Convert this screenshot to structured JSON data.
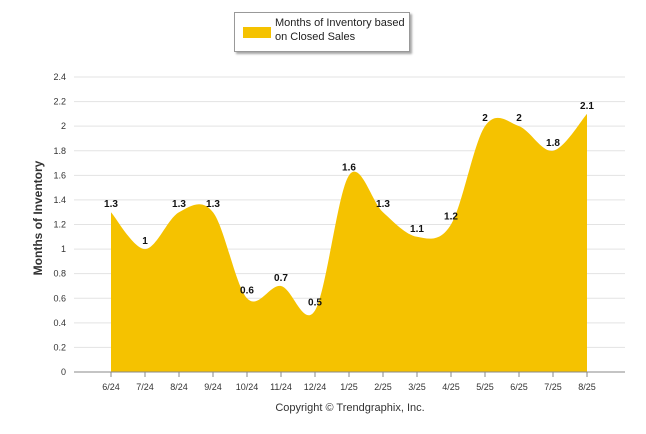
{
  "chart_data": {
    "type": "area",
    "categories": [
      "6/24",
      "7/24",
      "8/24",
      "9/24",
      "10/24",
      "11/24",
      "12/24",
      "1/25",
      "2/25",
      "3/25",
      "4/25",
      "5/25",
      "6/25",
      "7/25",
      "8/25"
    ],
    "series": [
      {
        "name": "Months of Inventory based on Closed Sales",
        "values": [
          1.3,
          1,
          1.3,
          1.3,
          0.6,
          0.7,
          0.5,
          1.6,
          1.3,
          1.1,
          1.2,
          2,
          2,
          1.8,
          2.1
        ]
      }
    ],
    "data_labels": [
      "1.3",
      "1",
      "1.3",
      "1.3",
      "0.6",
      "0.7",
      "0.5",
      "1.6",
      "1.3",
      "1.1",
      "1.2",
      "2",
      "2",
      "1.8",
      "2.1"
    ],
    "yticks": [
      "0",
      "0.2",
      "0.4",
      "0.6",
      "0.8",
      "1",
      "1.2",
      "1.4",
      "1.6",
      "1.8",
      "2",
      "2.2",
      "2.4"
    ],
    "ylim": [
      0,
      2.4
    ],
    "ylabel": "Months of Inventory",
    "xlabel": "",
    "grid": true,
    "legend_position": "top-center",
    "fill_color": "#F5C200"
  },
  "legend": {
    "label": "Months of Inventory based on Closed Sales",
    "color": "#F5C200"
  },
  "footer": {
    "copyright": "Copyright © Trendgraphix, Inc."
  }
}
